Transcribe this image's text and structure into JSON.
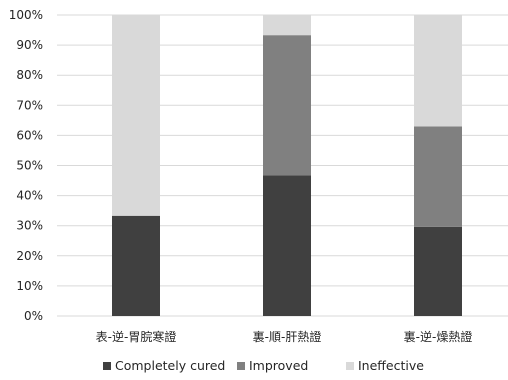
{
  "chart_data": {
    "type": "bar",
    "stacked": true,
    "percent_stacked": true,
    "categories": [
      "表-逆-胃脘寒證",
      "裏-順-肝熱證",
      "裏-逆-燥熱證"
    ],
    "series": [
      {
        "name": "Completely cured",
        "color": "#404040",
        "values": [
          33.3,
          46.7,
          29.6
        ]
      },
      {
        "name": "Improved",
        "color": "#808080",
        "values": [
          0,
          46.6,
          33.4
        ]
      },
      {
        "name": "Ineffective",
        "color": "#d9d9d9",
        "values": [
          66.7,
          6.7,
          37.0
        ]
      }
    ],
    "ylim": [
      0,
      100
    ],
    "yticks": [
      "0%",
      "10%",
      "20%",
      "30%",
      "40%",
      "50%",
      "60%",
      "70%",
      "80%",
      "90%",
      "100%"
    ],
    "grid": true,
    "legend": "bottom"
  }
}
